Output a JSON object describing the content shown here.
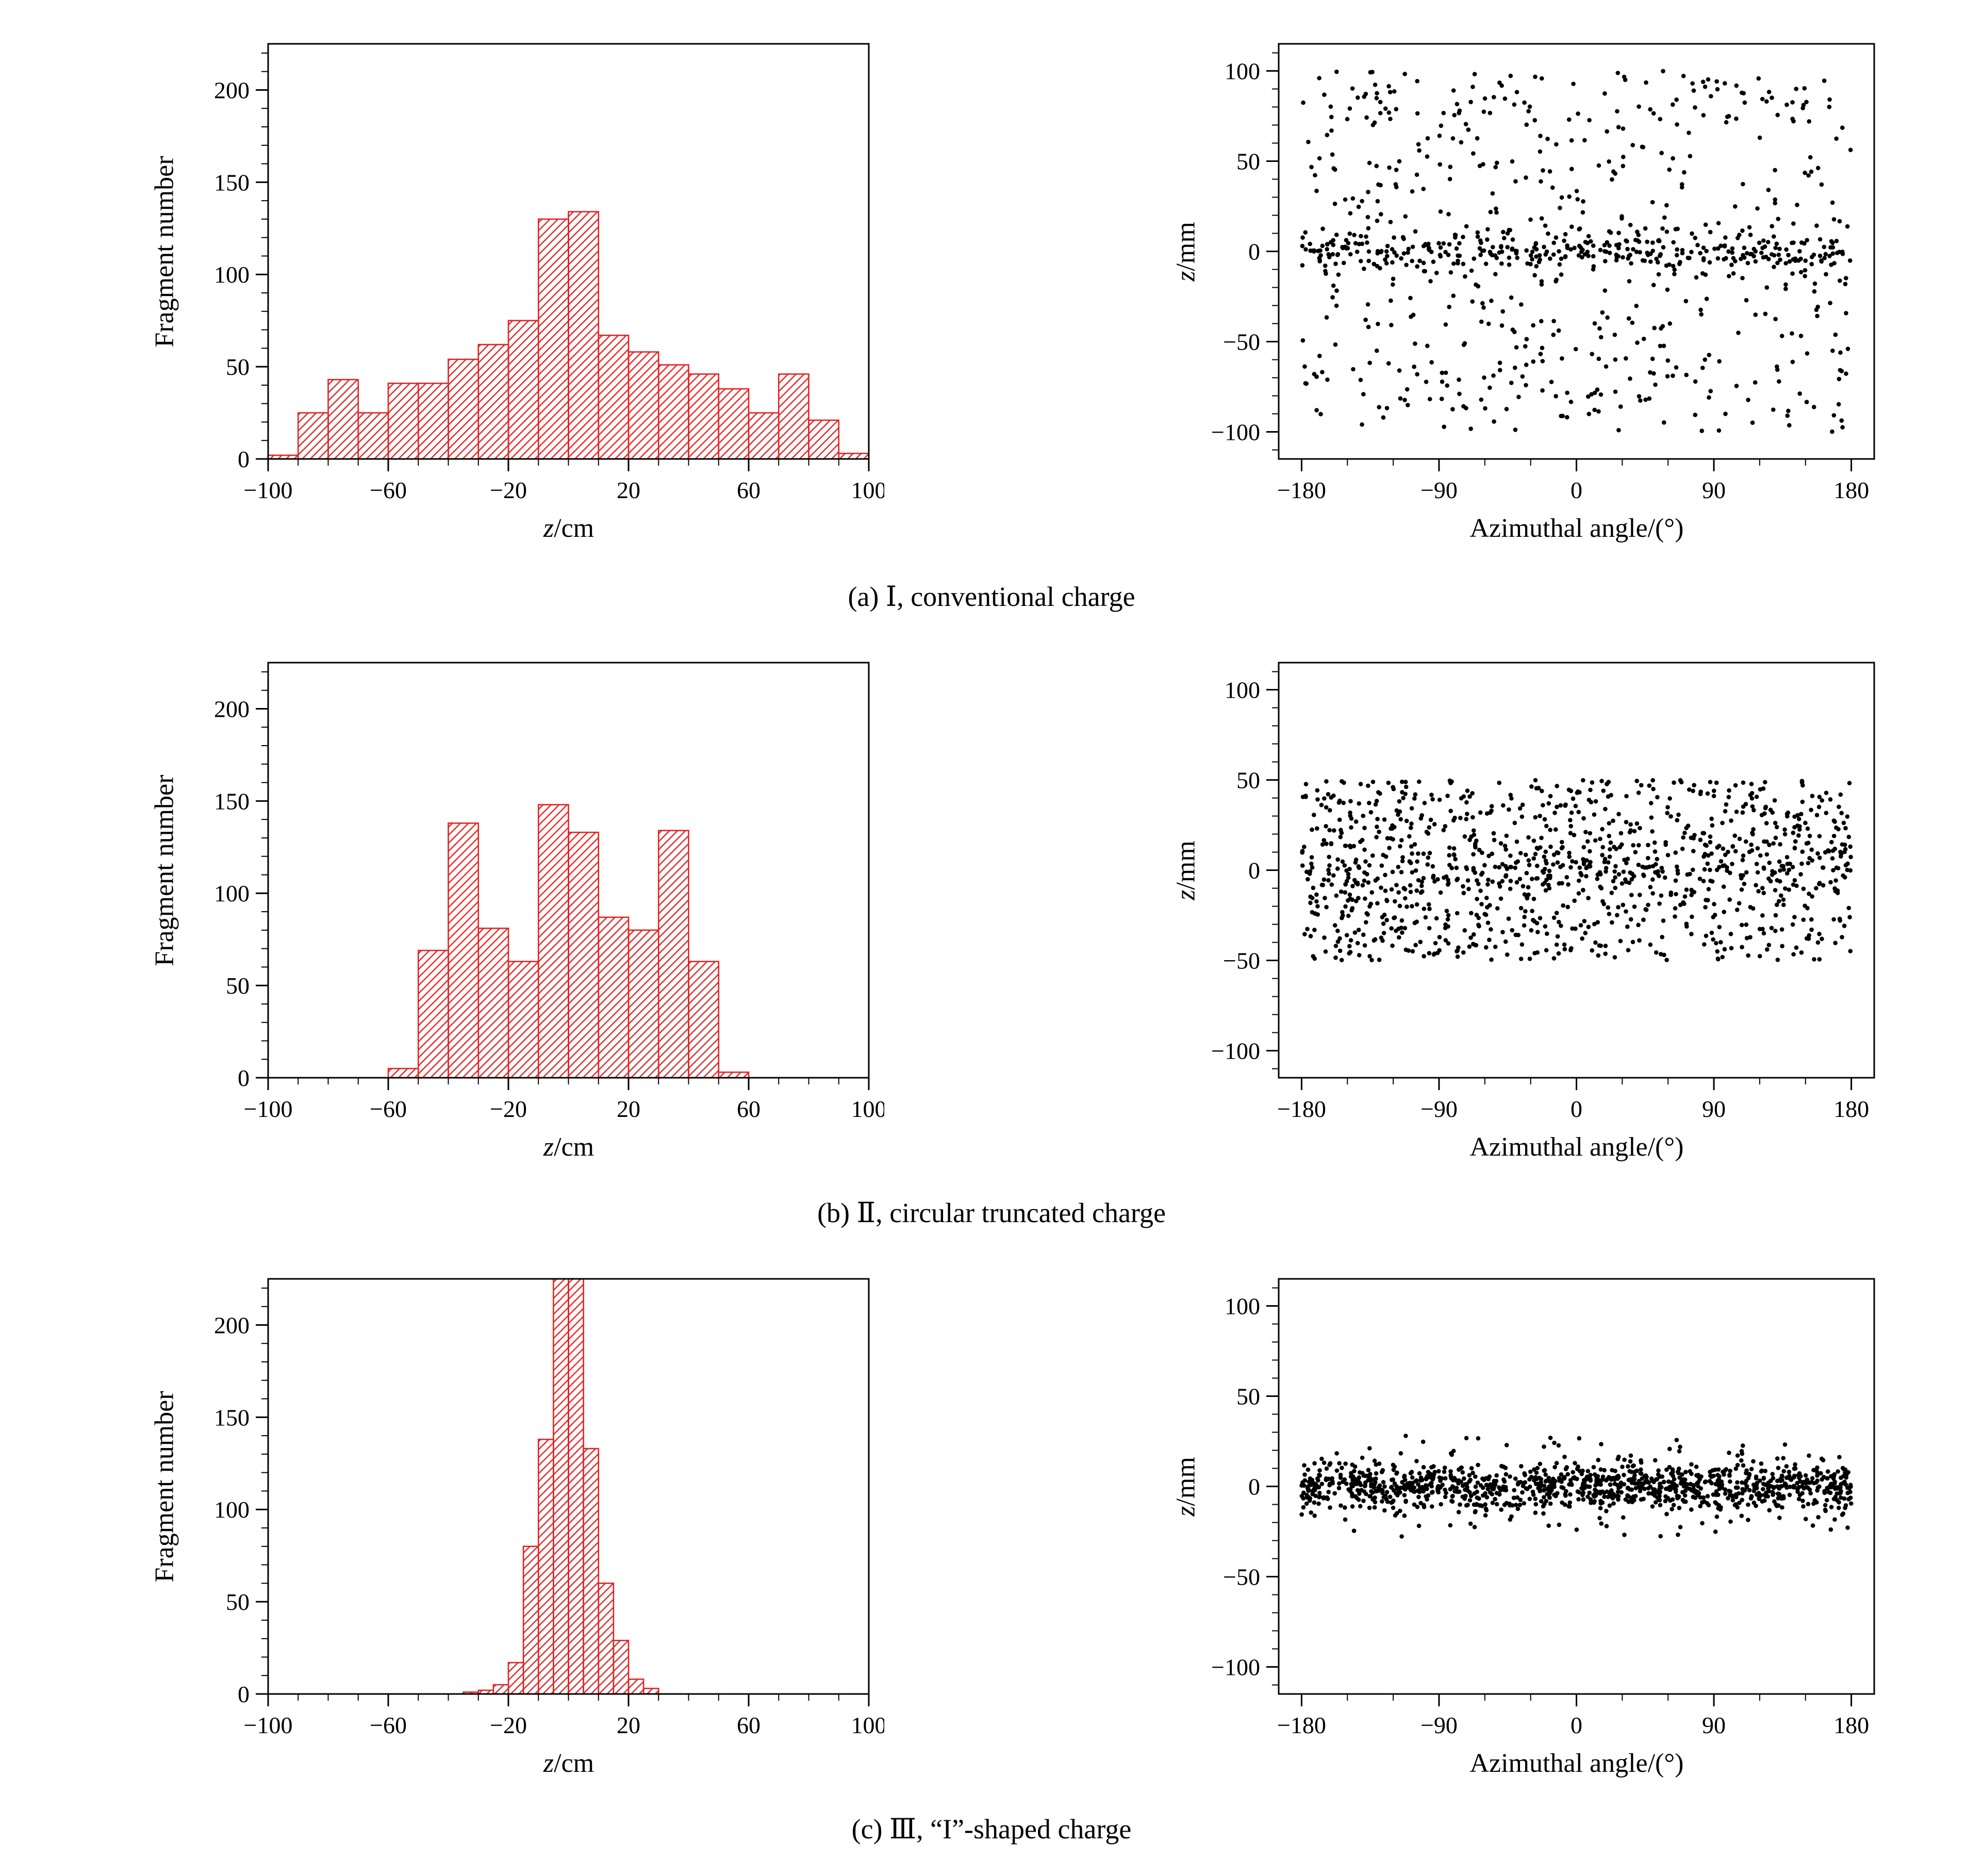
{
  "figure": {
    "background": "#ffffff",
    "bar_color": "#e62222",
    "point_color": "#000000",
    "axis_color": "#000000"
  },
  "chart_data": {
    "rows": [
      {
        "caption": "(a) Ⅰ, conventional charge",
        "histogram": {
          "type": "bar",
          "ylabel": "Fragment number",
          "xlabel_italic": "z",
          "xlabel_rest": "/cm",
          "xlim": [
            -100,
            100
          ],
          "ylim": [
            0,
            225
          ],
          "xticks": [
            -100,
            -60,
            -20,
            20,
            60,
            100
          ],
          "yticks": [
            0,
            50,
            100,
            150,
            200
          ],
          "x_minor_step": 10,
          "y_minor_step": 10,
          "bin_start": -100,
          "bin_width": 10,
          "values": [
            2,
            25,
            43,
            25,
            41,
            41,
            54,
            62,
            75,
            130,
            134,
            67,
            58,
            51,
            46,
            38,
            25,
            46,
            21,
            3
          ]
        },
        "scatter": {
          "type": "scatter",
          "ylabel_italic": "z",
          "ylabel_rest": "/mm",
          "xlabel": "Azimuthal angle/(°)",
          "xlim": [
            -195,
            195
          ],
          "ylim": [
            -115,
            115
          ],
          "xticks": [
            -180,
            -90,
            0,
            90,
            180
          ],
          "yticks": [
            -100,
            -50,
            0,
            50,
            100
          ],
          "x_minor_step": 30,
          "y_minor_step": 10,
          "n": 900,
          "seed": 11,
          "x_range": [
            -180,
            180
          ],
          "clip": [
            -103,
            103
          ],
          "y_components": [
            {
              "type": "uniform",
              "frac": 0.62,
              "range": [
                -100,
                100
              ]
            },
            {
              "type": "gauss",
              "frac": 0.38,
              "sigma": 5.5,
              "mean": 0
            }
          ]
        }
      },
      {
        "caption": "(b) Ⅱ, circular truncated charge",
        "histogram": {
          "type": "bar",
          "ylabel": "Fragment number",
          "xlabel_italic": "z",
          "xlabel_rest": "/cm",
          "xlim": [
            -100,
            100
          ],
          "ylim": [
            0,
            225
          ],
          "xticks": [
            -100,
            -60,
            -20,
            20,
            60,
            100
          ],
          "yticks": [
            0,
            50,
            100,
            150,
            200
          ],
          "x_minor_step": 10,
          "y_minor_step": 10,
          "bin_start": -100,
          "bin_width": 10,
          "values": [
            0,
            0,
            0,
            0,
            5,
            69,
            138,
            81,
            63,
            148,
            133,
            87,
            80,
            134,
            63,
            3,
            0,
            0,
            0,
            0
          ]
        },
        "scatter": {
          "type": "scatter",
          "ylabel_italic": "z",
          "ylabel_rest": "/mm",
          "xlabel": "Azimuthal angle/(°)",
          "xlim": [
            -195,
            195
          ],
          "ylim": [
            -115,
            115
          ],
          "xticks": [
            -180,
            -90,
            0,
            90,
            180
          ],
          "yticks": [
            -100,
            -50,
            0,
            50,
            100
          ],
          "x_minor_step": 30,
          "y_minor_step": 10,
          "n": 1150,
          "seed": 22,
          "x_range": [
            -180,
            180
          ],
          "clip": [
            -53,
            53
          ],
          "y_components": [
            {
              "type": "uniform",
              "frac": 0.78,
              "range": [
                -50,
                50
              ]
            },
            {
              "type": "gauss",
              "frac": 0.22,
              "sigma": 11,
              "mean": 0
            }
          ]
        }
      },
      {
        "caption": "(c) Ⅲ, “I”-shaped charge",
        "histogram": {
          "type": "bar",
          "ylabel": "Fragment number",
          "xlabel_italic": "z",
          "xlabel_rest": "/cm",
          "xlim": [
            -100,
            100
          ],
          "ylim": [
            0,
            225
          ],
          "xticks": [
            -100,
            -60,
            -20,
            20,
            60,
            100
          ],
          "yticks": [
            0,
            50,
            100,
            150,
            200
          ],
          "x_minor_step": 10,
          "y_minor_step": 10,
          "bin_start": -100,
          "bin_width": 5,
          "values": [
            0,
            0,
            0,
            0,
            0,
            0,
            0,
            0,
            0,
            0,
            0,
            0,
            0,
            1,
            2,
            5,
            17,
            80,
            138,
            225,
            225,
            133,
            60,
            29,
            8,
            3,
            0,
            0,
            0,
            0,
            0,
            0,
            0,
            0,
            0,
            0,
            0,
            0,
            0,
            0
          ]
        },
        "scatter": {
          "type": "scatter",
          "ylabel_italic": "z",
          "ylabel_rest": "/mm",
          "xlabel": "Azimuthal angle/(°)",
          "xlim": [
            -195,
            195
          ],
          "ylim": [
            -115,
            115
          ],
          "xticks": [
            -180,
            -90,
            0,
            90,
            180
          ],
          "yticks": [
            -100,
            -50,
            0,
            50,
            100
          ],
          "x_minor_step": 30,
          "y_minor_step": 10,
          "n": 1250,
          "seed": 33,
          "x_range": [
            -180,
            180
          ],
          "clip": [
            -31,
            31
          ],
          "y_components": [
            {
              "type": "gauss",
              "frac": 0.93,
              "sigma": 6.5,
              "mean": 0
            },
            {
              "type": "uniform",
              "frac": 0.07,
              "range": [
                -28,
                28
              ]
            }
          ]
        }
      }
    ]
  }
}
